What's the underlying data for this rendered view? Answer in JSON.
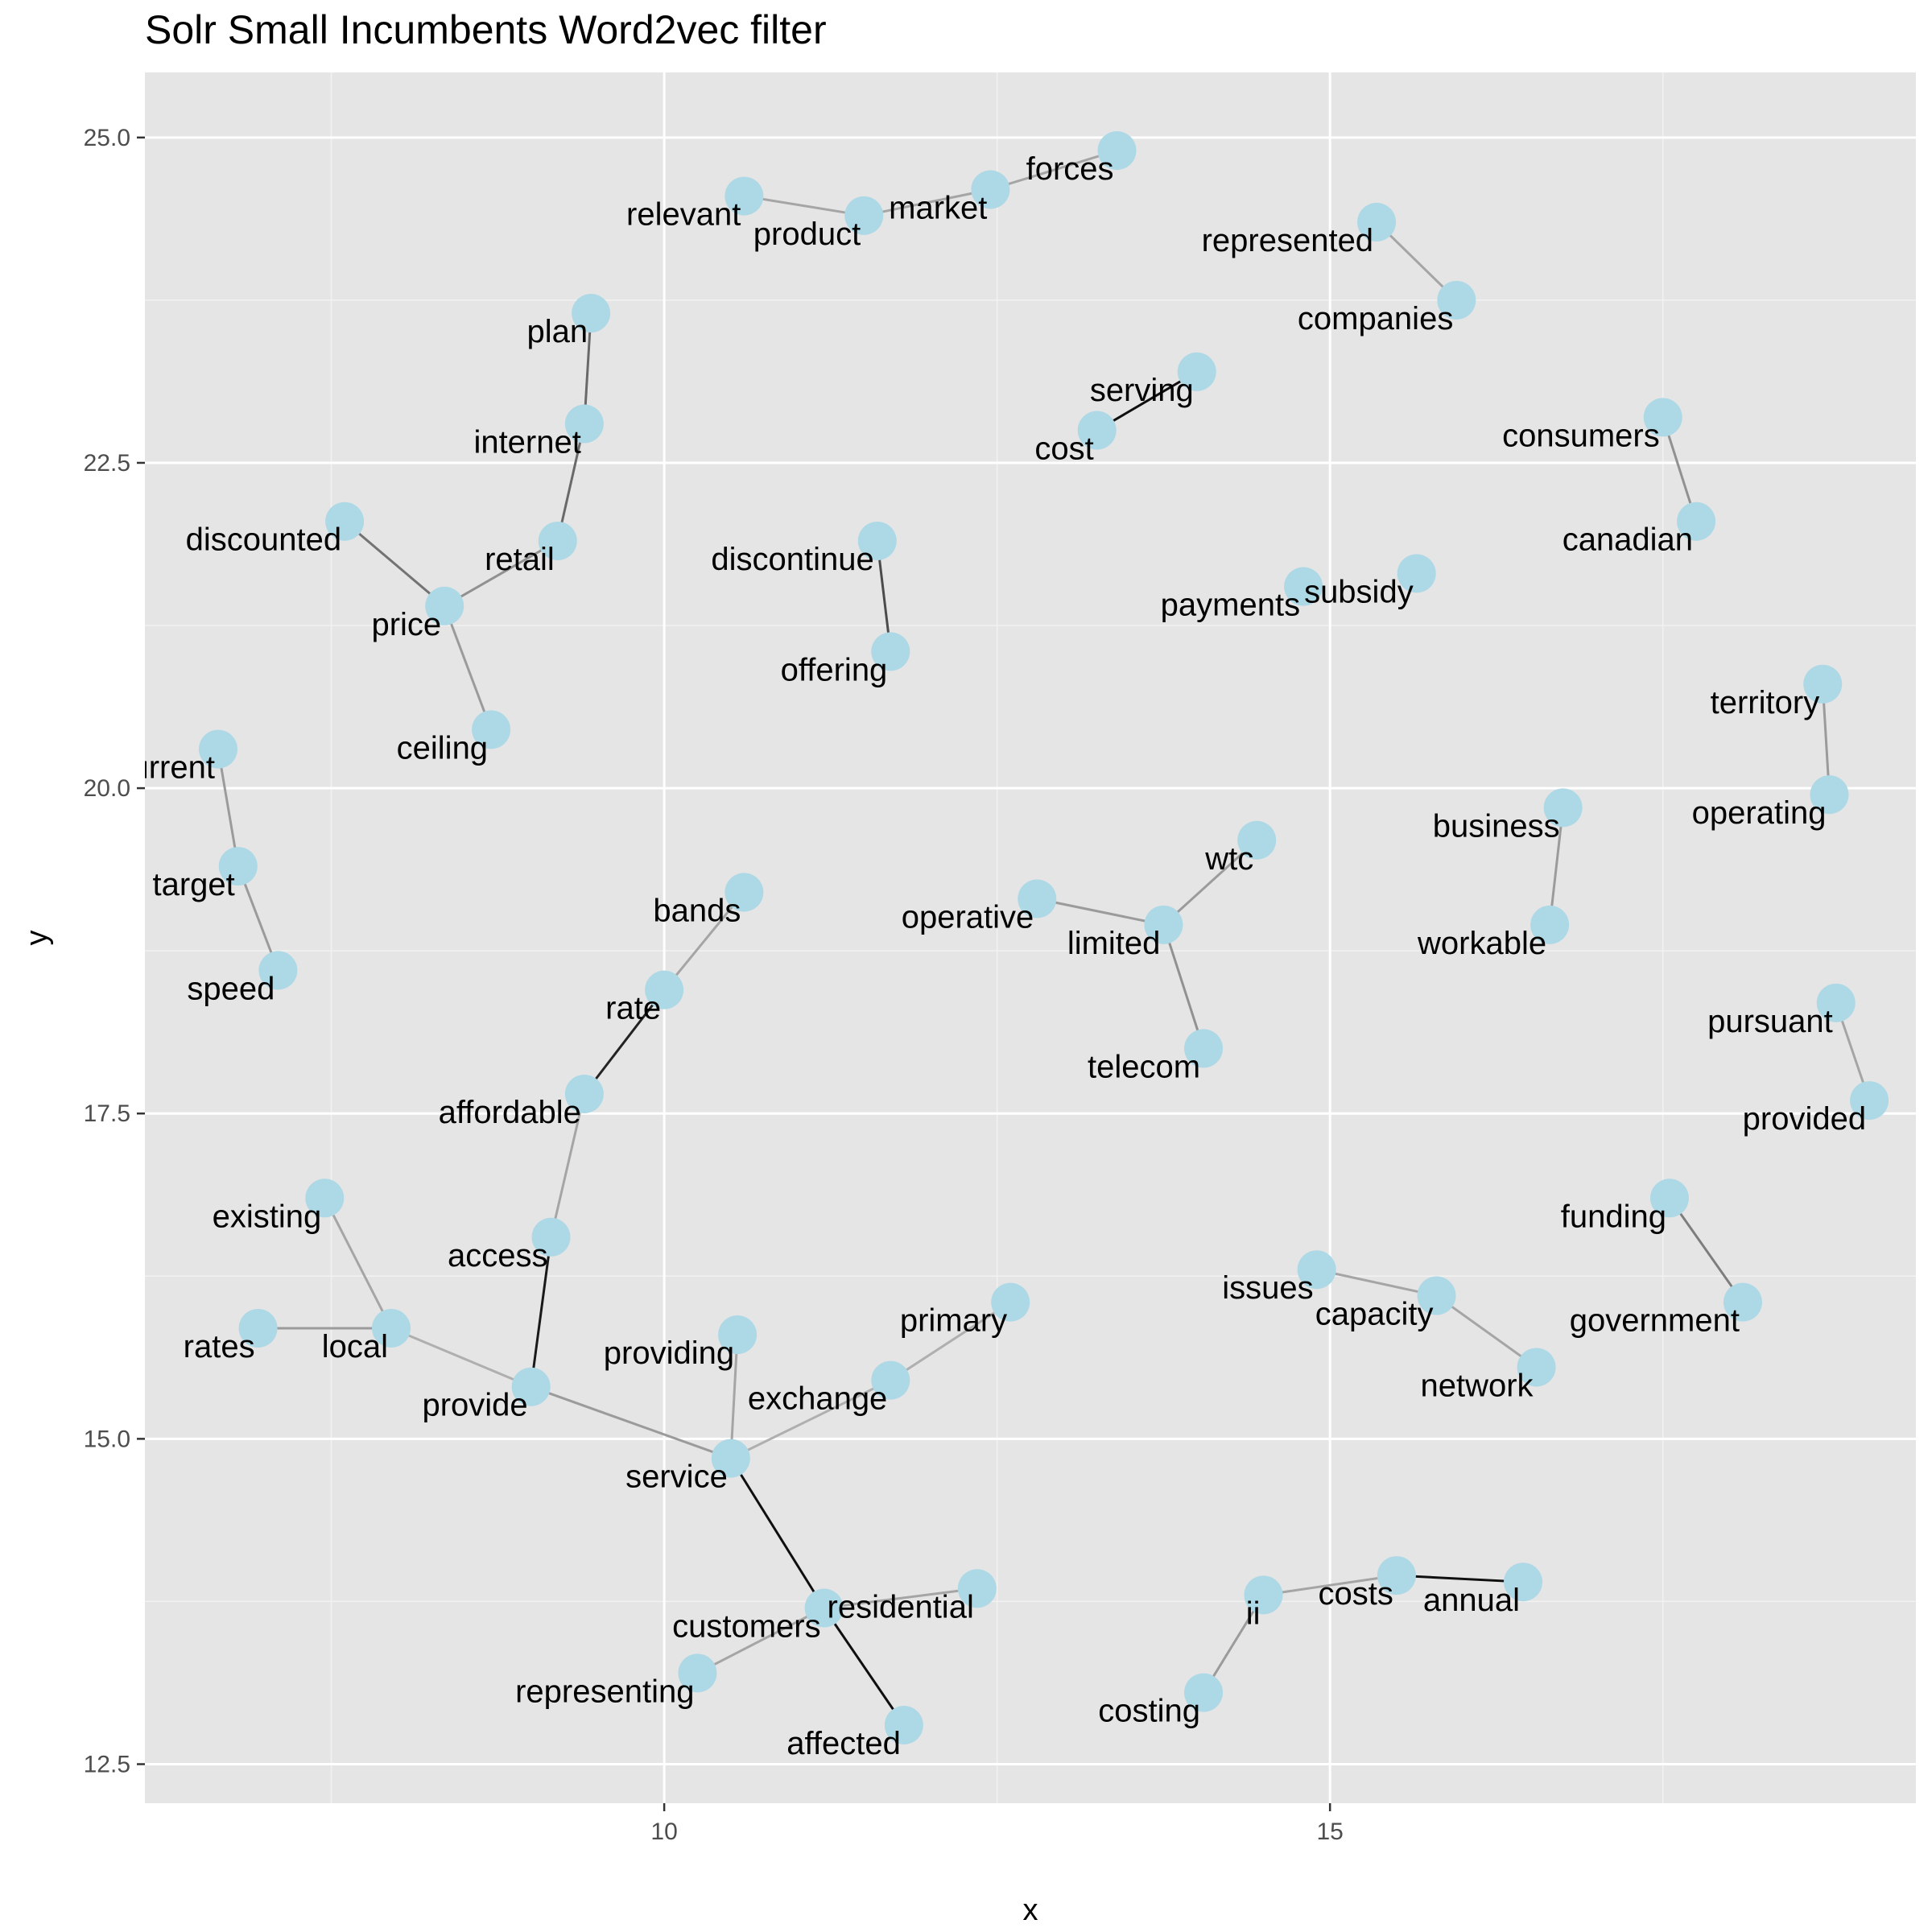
{
  "chart_data": {
    "type": "scatter",
    "title": "Solr Small Incumbents Word2vec filter",
    "xlabel": "x",
    "ylabel": "y",
    "xlim": [
      6.1,
      19.4
    ],
    "ylim": [
      12.2,
      25.5
    ],
    "x_ticks": [
      10,
      15
    ],
    "y_ticks": [
      12.5,
      15.0,
      17.5,
      20.0,
      22.5,
      25.0
    ],
    "x_tick_labels": [
      "10",
      "15"
    ],
    "y_tick_labels": [
      "12.5",
      "15.0",
      "17.5",
      "20.0",
      "22.5",
      "25.0"
    ],
    "grid": true,
    "points": [
      {
        "word": "forces",
        "x": 13.4,
        "y": 24.9
      },
      {
        "word": "market",
        "x": 12.45,
        "y": 24.6
      },
      {
        "word": "relevant",
        "x": 10.6,
        "y": 24.55
      },
      {
        "word": "product",
        "x": 11.5,
        "y": 24.4
      },
      {
        "word": "represented",
        "x": 15.35,
        "y": 24.35
      },
      {
        "word": "companies",
        "x": 15.95,
        "y": 23.75
      },
      {
        "word": "plan",
        "x": 9.45,
        "y": 23.65
      },
      {
        "word": "serving",
        "x": 14.0,
        "y": 23.2
      },
      {
        "word": "consumers",
        "x": 17.5,
        "y": 22.85
      },
      {
        "word": "internet",
        "x": 9.4,
        "y": 22.8
      },
      {
        "word": "cost",
        "x": 13.25,
        "y": 22.75
      },
      {
        "word": "discounted",
        "x": 7.6,
        "y": 22.05
      },
      {
        "word": "canadian",
        "x": 17.75,
        "y": 22.05
      },
      {
        "word": "retail",
        "x": 9.2,
        "y": 21.9
      },
      {
        "word": "discontinue",
        "x": 11.6,
        "y": 21.9
      },
      {
        "word": "subsidy",
        "x": 15.65,
        "y": 21.65
      },
      {
        "word": "payments",
        "x": 14.8,
        "y": 21.55
      },
      {
        "word": "price",
        "x": 8.35,
        "y": 21.4
      },
      {
        "word": "offering",
        "x": 11.7,
        "y": 21.05
      },
      {
        "word": "territory",
        "x": 18.7,
        "y": 20.8
      },
      {
        "word": "ceiling",
        "x": 8.7,
        "y": 20.45
      },
      {
        "word": "current",
        "x": 6.65,
        "y": 20.3
      },
      {
        "word": "operating",
        "x": 18.75,
        "y": 19.95
      },
      {
        "word": "business",
        "x": 16.75,
        "y": 19.85
      },
      {
        "word": "wtc",
        "x": 14.45,
        "y": 19.6
      },
      {
        "word": "target",
        "x": 6.8,
        "y": 19.4
      },
      {
        "word": "bands",
        "x": 10.6,
        "y": 19.2
      },
      {
        "word": "operative",
        "x": 12.8,
        "y": 19.15
      },
      {
        "word": "limited",
        "x": 13.75,
        "y": 18.95
      },
      {
        "word": "workable",
        "x": 16.65,
        "y": 18.95
      },
      {
        "word": "speed",
        "x": 7.1,
        "y": 18.6
      },
      {
        "word": "rate",
        "x": 10.0,
        "y": 18.45
      },
      {
        "word": "pursuant",
        "x": 18.8,
        "y": 18.35
      },
      {
        "word": "telecom",
        "x": 14.05,
        "y": 18.0
      },
      {
        "word": "provided",
        "x": 19.05,
        "y": 17.6
      },
      {
        "word": "affordable",
        "x": 9.4,
        "y": 17.65
      },
      {
        "word": "existing",
        "x": 7.45,
        "y": 16.85
      },
      {
        "word": "funding",
        "x": 17.55,
        "y": 16.85
      },
      {
        "word": "access",
        "x": 9.15,
        "y": 16.55
      },
      {
        "word": "issues",
        "x": 14.9,
        "y": 16.3
      },
      {
        "word": "capacity",
        "x": 15.8,
        "y": 16.1
      },
      {
        "word": "government",
        "x": 18.1,
        "y": 16.05
      },
      {
        "word": "primary",
        "x": 12.6,
        "y": 16.05
      },
      {
        "word": "rates",
        "x": 6.95,
        "y": 15.85
      },
      {
        "word": "local",
        "x": 7.95,
        "y": 15.85
      },
      {
        "word": "providing",
        "x": 10.55,
        "y": 15.8
      },
      {
        "word": "network",
        "x": 16.55,
        "y": 15.55
      },
      {
        "word": "exchange",
        "x": 11.7,
        "y": 15.45
      },
      {
        "word": "provide",
        "x": 9.0,
        "y": 15.4
      },
      {
        "word": "service",
        "x": 10.5,
        "y": 14.85
      },
      {
        "word": "costs",
        "x": 15.5,
        "y": 13.95
      },
      {
        "word": "annual",
        "x": 16.45,
        "y": 13.9
      },
      {
        "word": "residential",
        "x": 12.35,
        "y": 13.85
      },
      {
        "word": "ii",
        "x": 14.5,
        "y": 13.8
      },
      {
        "word": "customers",
        "x": 11.2,
        "y": 13.7
      },
      {
        "word": "representing",
        "x": 10.25,
        "y": 13.2
      },
      {
        "word": "costing",
        "x": 14.05,
        "y": 13.05
      },
      {
        "word": "affected",
        "x": 11.8,
        "y": 12.8
      }
    ],
    "edges": [
      {
        "from": "relevant",
        "to": "product",
        "strength": 0.25
      },
      {
        "from": "product",
        "to": "market",
        "strength": 0.25
      },
      {
        "from": "market",
        "to": "forces",
        "strength": 0.25
      },
      {
        "from": "represented",
        "to": "companies",
        "strength": 0.25
      },
      {
        "from": "plan",
        "to": "internet",
        "strength": 0.55
      },
      {
        "from": "internet",
        "to": "retail",
        "strength": 0.55
      },
      {
        "from": "retail",
        "to": "price",
        "strength": 0.35
      },
      {
        "from": "discounted",
        "to": "price",
        "strength": 0.5
      },
      {
        "from": "price",
        "to": "ceiling",
        "strength": 0.3
      },
      {
        "from": "cost",
        "to": "serving",
        "strength": 1.0
      },
      {
        "from": "consumers",
        "to": "canadian",
        "strength": 0.35
      },
      {
        "from": "discontinue",
        "to": "offering",
        "strength": 0.7
      },
      {
        "from": "territory",
        "to": "operating",
        "strength": 0.3
      },
      {
        "from": "current",
        "to": "target",
        "strength": 0.3
      },
      {
        "from": "target",
        "to": "speed",
        "strength": 0.3
      },
      {
        "from": "business",
        "to": "workable",
        "strength": 0.3
      },
      {
        "from": "operative",
        "to": "limited",
        "strength": 0.3
      },
      {
        "from": "limited",
        "to": "wtc",
        "strength": 0.3
      },
      {
        "from": "limited",
        "to": "telecom",
        "strength": 0.35
      },
      {
        "from": "bands",
        "to": "rate",
        "strength": 0.25
      },
      {
        "from": "rate",
        "to": "affordable",
        "strength": 0.9
      },
      {
        "from": "affordable",
        "to": "access",
        "strength": 0.25
      },
      {
        "from": "access",
        "to": "provide",
        "strength": 0.95
      },
      {
        "from": "pursuant",
        "to": "provided",
        "strength": 0.25
      },
      {
        "from": "existing",
        "to": "local",
        "strength": 0.25
      },
      {
        "from": "rates",
        "to": "local",
        "strength": 0.3
      },
      {
        "from": "local",
        "to": "provide",
        "strength": 0.2
      },
      {
        "from": "provide",
        "to": "service",
        "strength": 0.3
      },
      {
        "from": "funding",
        "to": "government",
        "strength": 0.45
      },
      {
        "from": "issues",
        "to": "capacity",
        "strength": 0.25
      },
      {
        "from": "capacity",
        "to": "network",
        "strength": 0.25
      },
      {
        "from": "providing",
        "to": "service",
        "strength": 0.25
      },
      {
        "from": "service",
        "to": "exchange",
        "strength": 0.2
      },
      {
        "from": "exchange",
        "to": "primary",
        "strength": 0.2
      },
      {
        "from": "service",
        "to": "customers",
        "strength": 1.0
      },
      {
        "from": "customers",
        "to": "affected",
        "strength": 1.0
      },
      {
        "from": "customers",
        "to": "residential",
        "strength": 0.25
      },
      {
        "from": "customers",
        "to": "representing",
        "strength": 0.25
      },
      {
        "from": "costs",
        "to": "annual",
        "strength": 1.0
      },
      {
        "from": "ii",
        "to": "costs",
        "strength": 0.25
      },
      {
        "from": "ii",
        "to": "costing",
        "strength": 0.3
      }
    ],
    "node_color": "#add8e6",
    "panel_color": "#e5e5e5"
  }
}
